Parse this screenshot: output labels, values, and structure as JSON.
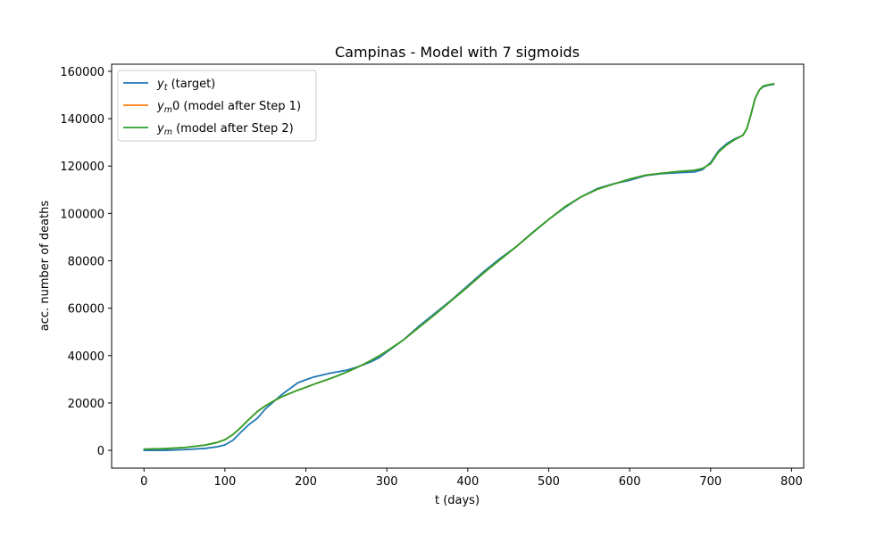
{
  "chart_data": {
    "type": "line",
    "title": "Campinas - Model with 7 sigmoids",
    "xlabel": "t (days)",
    "ylabel": "acc. number of deaths",
    "xlim": [
      -40,
      815
    ],
    "ylim": [
      -7500,
      163000
    ],
    "xticks": [
      0,
      100,
      200,
      300,
      400,
      500,
      600,
      700,
      800
    ],
    "yticks": [
      0,
      20000,
      40000,
      60000,
      80000,
      100000,
      120000,
      140000,
      160000
    ],
    "grid": false,
    "legend_position": "top-left",
    "series": [
      {
        "name_main": "y",
        "name_sub": "t",
        "name_rest": " (target)",
        "color": "#1f77b4",
        "x": [
          0,
          25,
          50,
          75,
          90,
          100,
          110,
          120,
          130,
          140,
          150,
          160,
          170,
          180,
          190,
          200,
          210,
          220,
          230,
          240,
          250,
          260,
          270,
          280,
          290,
          300,
          320,
          340,
          360,
          380,
          400,
          420,
          440,
          460,
          480,
          500,
          520,
          540,
          560,
          580,
          600,
          620,
          640,
          660,
          680,
          690,
          700,
          710,
          720,
          730,
          740,
          745,
          750,
          755,
          760,
          765,
          770,
          778
        ],
        "y": [
          0,
          0,
          300,
          800,
          1500,
          2300,
          4300,
          7800,
          11000,
          13500,
          17500,
          20500,
          23500,
          26000,
          28500,
          29800,
          31000,
          31800,
          32600,
          33200,
          33800,
          34800,
          36000,
          37300,
          39000,
          41500,
          46500,
          52500,
          58000,
          63500,
          69500,
          75500,
          81000,
          86000,
          92000,
          97500,
          102500,
          107000,
          110500,
          112500,
          114000,
          116000,
          116800,
          117200,
          117500,
          118500,
          121500,
          126500,
          129500,
          131500,
          133000,
          136000,
          142000,
          148500,
          152000,
          153500,
          154000,
          154500
        ]
      },
      {
        "name_main": "y",
        "name_sub": "m",
        "name_rest": "0 (model after Step 1)",
        "color": "#ff7f0e",
        "x": [
          0,
          25,
          50,
          75,
          90,
          100,
          110,
          120,
          130,
          140,
          150,
          160,
          170,
          180,
          190,
          200,
          210,
          220,
          230,
          240,
          250,
          260,
          270,
          280,
          290,
          300,
          320,
          340,
          360,
          380,
          400,
          420,
          440,
          460,
          480,
          500,
          520,
          540,
          560,
          580,
          600,
          620,
          640,
          660,
          680,
          690,
          700,
          710,
          720,
          730,
          740,
          745,
          750,
          755,
          760,
          765,
          770,
          778
        ],
        "y": [
          500,
          700,
          1200,
          2200,
          3300,
          4500,
          6700,
          9800,
          13200,
          16400,
          18800,
          20800,
          22600,
          24000,
          25400,
          26600,
          27900,
          29100,
          30300,
          31600,
          33000,
          34500,
          36100,
          37900,
          39800,
          41900,
          46500,
          52000,
          57500,
          63300,
          69000,
          75000,
          80500,
          86000,
          91800,
          97500,
          102800,
          107000,
          110200,
          112400,
          114500,
          116200,
          117000,
          117700,
          118200,
          119000,
          121000,
          126000,
          129000,
          131200,
          133000,
          136000,
          142000,
          148500,
          152000,
          153800,
          154200,
          154700
        ]
      },
      {
        "name_main": "y",
        "name_sub": "m",
        "name_rest": " (model after Step 2)",
        "color": "#2ca02c",
        "x": [
          0,
          25,
          50,
          75,
          90,
          100,
          110,
          120,
          130,
          140,
          150,
          160,
          170,
          180,
          190,
          200,
          210,
          220,
          230,
          240,
          250,
          260,
          270,
          280,
          290,
          300,
          320,
          340,
          360,
          380,
          400,
          420,
          440,
          460,
          480,
          500,
          520,
          540,
          560,
          580,
          600,
          620,
          640,
          660,
          680,
          690,
          700,
          710,
          720,
          730,
          740,
          745,
          750,
          755,
          760,
          765,
          770,
          778
        ],
        "y": [
          500,
          700,
          1200,
          2200,
          3300,
          4500,
          6700,
          9800,
          13200,
          16400,
          18800,
          20800,
          22600,
          24000,
          25400,
          26600,
          27900,
          29100,
          30300,
          31600,
          33000,
          34500,
          36100,
          37900,
          39800,
          41900,
          46500,
          52000,
          57500,
          63300,
          69000,
          75000,
          80500,
          86000,
          91800,
          97500,
          102800,
          107000,
          110200,
          112400,
          114500,
          116200,
          117000,
          117700,
          118200,
          119000,
          121000,
          126000,
          129000,
          131200,
          133000,
          136000,
          142000,
          148500,
          152000,
          153800,
          154200,
          154700
        ]
      }
    ]
  }
}
